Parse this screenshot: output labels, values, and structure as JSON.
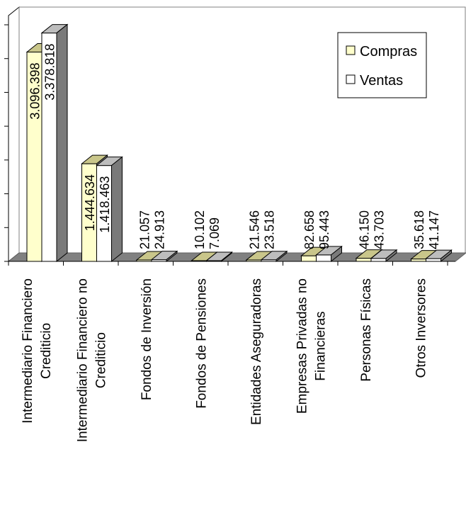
{
  "chart_data": {
    "type": "bar",
    "title": "",
    "xlabel": "",
    "ylabel": "",
    "ylim": [
      0,
      3500000
    ],
    "grid": false,
    "legend_position": "top-right",
    "categories": [
      "Intermediario Financiero Crediticio",
      "Intermediario Financiero no Crediticio",
      "Fondos de Inversión",
      "Fondos de Pensiones",
      "Entidades Aseguradoras",
      "Empresas Privadas no Financieras",
      "Personas Físicas",
      "Otros Inversores"
    ],
    "category_lines": [
      [
        "Intermediario Financiero",
        "Crediticio"
      ],
      [
        "Intermediario Financiero no",
        "Crediticio"
      ],
      [
        "Fondos de Inversión"
      ],
      [
        "Fondos de Pensiones"
      ],
      [
        "Entidades Aseguradoras"
      ],
      [
        "Empresas Privadas no",
        "Financieras"
      ],
      [
        "Personas Físicas"
      ],
      [
        "Otros Inversores"
      ]
    ],
    "series": [
      {
        "name": "Compras",
        "color": "#FFFFCC",
        "values": [
          3096398,
          1444634,
          21057,
          10102,
          21546,
          82658,
          46150,
          35618
        ],
        "labels": [
          "3.096.398",
          "1.444.634",
          "21.057",
          "10.102",
          "21.546",
          "82.658",
          "46.150",
          "35.618"
        ]
      },
      {
        "name": "Ventas",
        "color": "#FFFFFF",
        "values": [
          3378818,
          1418463,
          24913,
          7069,
          23518,
          95443,
          43703,
          41147
        ],
        "labels": [
          "3.378.818",
          "1.418.463",
          "24.913",
          "7.069",
          "23.518",
          "95.443",
          "43.703",
          "41.147"
        ]
      }
    ]
  }
}
